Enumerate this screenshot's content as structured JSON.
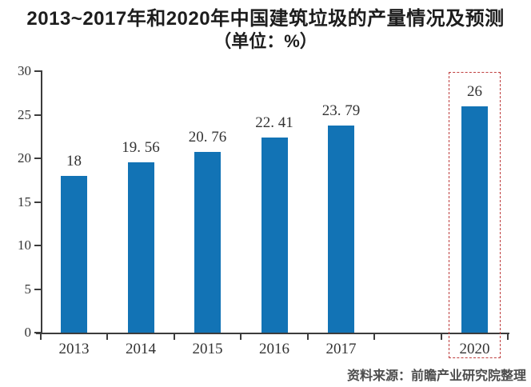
{
  "title": {
    "line1": "2013~2017年和2020年中国建筑垃圾的产量情况及预测",
    "line2": "（单位：%）"
  },
  "source_note": "资料来源：前瞻产业研究院整理",
  "colors": {
    "bar": "#1273b5",
    "axis": "#3c3c3c",
    "label_text": "#333333",
    "title_text": "#1d1d1d",
    "highlight_box": "#bf3f3f",
    "source_text": "#4d4d4d",
    "background": "#ffffff"
  },
  "chart_data": {
    "type": "bar",
    "title": "2013~2017年和2020年中国建筑垃圾的产量情况及预测（单位：%）",
    "unit": "%",
    "categories": [
      "2013",
      "2014",
      "2015",
      "2016",
      "2017",
      "2020"
    ],
    "values": [
      18,
      19.56,
      20.76,
      22.41,
      23.79,
      26
    ],
    "points": [
      {
        "label": "2013",
        "value": 18,
        "display": "18",
        "slot": 0,
        "highlighted": false
      },
      {
        "label": "2014",
        "value": 19.56,
        "display": "19. 56",
        "slot": 1,
        "highlighted": false
      },
      {
        "label": "2015",
        "value": 20.76,
        "display": "20. 76",
        "slot": 2,
        "highlighted": false
      },
      {
        "label": "2016",
        "value": 22.41,
        "display": "22. 41",
        "slot": 3,
        "highlighted": false
      },
      {
        "label": "2017",
        "value": 23.79,
        "display": "23. 79",
        "slot": 4,
        "highlighted": false
      },
      {
        "label": "2020",
        "value": 26,
        "display": "26",
        "slot": 6,
        "highlighted": true
      }
    ],
    "y_ticks": [
      0,
      5,
      10,
      15,
      20,
      25,
      30
    ],
    "ylim": [
      0,
      30
    ],
    "xlabel": "",
    "ylabel": "",
    "grid": false,
    "legend": false,
    "highlight": {
      "category": "2020",
      "style": "red-dashed-box"
    }
  }
}
